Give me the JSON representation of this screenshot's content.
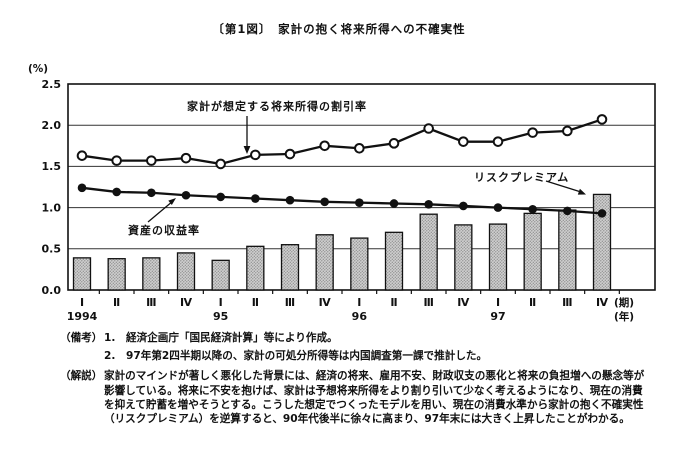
{
  "title": "〔第1図〕　家計の抱く将来所得への不確実性",
  "chart_data": {
    "type": "combo-bar-line",
    "title": "家計の抱く将来所得への不確実性",
    "unit_label": "(%)",
    "ylim": [
      0,
      2.5
    ],
    "yticks": [
      "0.0",
      "0.5",
      "1.0",
      "1.5",
      "2.0",
      "2.5"
    ],
    "grid": true,
    "x_axis": {
      "quarters": [
        "Ⅰ",
        "Ⅱ",
        "Ⅲ",
        "Ⅳ",
        "Ⅰ",
        "Ⅱ",
        "Ⅲ",
        "Ⅳ",
        "Ⅰ",
        "Ⅱ",
        "Ⅲ",
        "Ⅳ",
        "Ⅰ",
        "Ⅱ",
        "Ⅲ",
        "Ⅳ"
      ],
      "year_labels": [
        {
          "index": 0,
          "label": "1994"
        },
        {
          "index": 4,
          "label": "95"
        },
        {
          "index": 8,
          "label": "96"
        },
        {
          "index": 12,
          "label": "97"
        }
      ],
      "period_suffix": "(期)",
      "year_suffix": "(年)"
    },
    "series": [
      {
        "name": "家計が想定する将来所得の割引率",
        "type": "line",
        "marker": "open-circle",
        "values": [
          1.63,
          1.57,
          1.57,
          1.6,
          1.53,
          1.64,
          1.65,
          1.75,
          1.72,
          1.78,
          1.96,
          1.8,
          1.8,
          1.91,
          1.93,
          2.07
        ]
      },
      {
        "name": "資産の収益率",
        "type": "line",
        "marker": "filled-circle",
        "values": [
          1.24,
          1.19,
          1.18,
          1.15,
          1.13,
          1.11,
          1.09,
          1.07,
          1.06,
          1.05,
          1.04,
          1.02,
          1.0,
          0.98,
          0.96,
          0.93
        ]
      },
      {
        "name": "リスクプレミアム",
        "type": "bar",
        "values": [
          0.39,
          0.38,
          0.39,
          0.45,
          0.36,
          0.53,
          0.55,
          0.67,
          0.63,
          0.7,
          0.92,
          0.79,
          0.8,
          0.93,
          0.97,
          1.16
        ]
      }
    ]
  },
  "annotations": {
    "discount_rate_label": "家計が想定する将来所得の割引率",
    "asset_return_label": "資産の収益率",
    "risk_premium_label": "リスクプレミアム"
  },
  "notes": {
    "biko_label": "（備考）",
    "biko_items": [
      "1.　経済企画庁「国民経済計算」等により作成。",
      "2.　97年第2四半期以降の、家計の可処分所得等は内国調査第一課で推計した。"
    ],
    "kaisetsu_label": "（解説）",
    "kaisetsu_text": "家計のマインドが著しく悪化した背景には、経済の将来、雇用不安、財政収支の悪化と将来の負担増への懸念等が影響している。将来に不安を抱けば、家計は予想将来所得をより割り引いて少なく考えるようになり、現在の消費を抑えて貯蓄を増やそうとする。こうした想定でつくったモデルを用い、現在の消費水準から家計の抱く不確実性（リスクプレミアム）を逆算すると、90年代後半に徐々に高まり、97年末には大きく上昇したことがわかる。"
  },
  "colors": {
    "ink": "#111111",
    "grid": "#333333",
    "bar_fill": "#cfcfcf",
    "bar_dot": "#8a8a8a",
    "background": "#ffffff"
  }
}
